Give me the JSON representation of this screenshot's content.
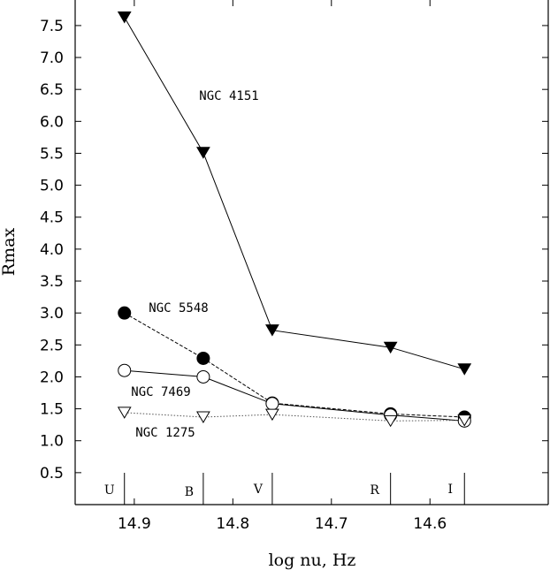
{
  "chart_data": {
    "type": "line",
    "xlabel": "log nu, Hz",
    "ylabel": "Rmax",
    "xlim": [
      14.96,
      14.48
    ],
    "ylim": [
      0.0,
      7.9
    ],
    "x_reversed": true,
    "grid": false,
    "x_ticks": [
      14.9,
      14.8,
      14.7,
      14.6
    ],
    "x_tick_labels": [
      "14.9",
      "14.8",
      "14.7",
      "14.6"
    ],
    "y_ticks": [
      0.5,
      1.0,
      1.5,
      2.0,
      2.5,
      3.0,
      3.5,
      4.0,
      4.5,
      5.0,
      5.5,
      6.0,
      6.5,
      7.0,
      7.5
    ],
    "y_tick_labels": [
      "0.5",
      "1.0",
      "1.5",
      "2.0",
      "2.5",
      "3.0",
      "3.5",
      "4.0",
      "4.5",
      "5.0",
      "5.5",
      "6.0",
      "6.5",
      "7.0",
      "7.5"
    ],
    "bands": [
      {
        "name": "U",
        "x": 14.91
      },
      {
        "name": "B",
        "x": 14.83
      },
      {
        "name": "V",
        "x": 14.76
      },
      {
        "name": "R",
        "x": 14.64
      },
      {
        "name": "I",
        "x": 14.565
      }
    ],
    "series": [
      {
        "name": "NGC 4151",
        "marker": "filled-triangle-down",
        "line": "solid",
        "x": [
          14.91,
          14.83,
          14.76,
          14.64,
          14.565
        ],
        "values": [
          7.63,
          5.51,
          2.73,
          2.46,
          2.12
        ]
      },
      {
        "name": "NGC 5548",
        "marker": "filled-circle",
        "line": "dashed",
        "x": [
          14.91,
          14.83,
          14.76,
          14.64,
          14.565
        ],
        "values": [
          3.0,
          2.29,
          1.59,
          1.42,
          1.37
        ]
      },
      {
        "name": "NGC 7469",
        "marker": "open-circle",
        "line": "solid",
        "x": [
          14.91,
          14.83,
          14.76,
          14.64,
          14.565
        ],
        "values": [
          2.1,
          2.0,
          1.58,
          1.4,
          1.31
        ]
      },
      {
        "name": "NGC 1275",
        "marker": "open-triangle-down",
        "line": "dotted",
        "x": [
          14.91,
          14.83,
          14.76,
          14.64,
          14.565
        ],
        "values": [
          1.44,
          1.37,
          1.41,
          1.31,
          1.32
        ]
      }
    ]
  }
}
